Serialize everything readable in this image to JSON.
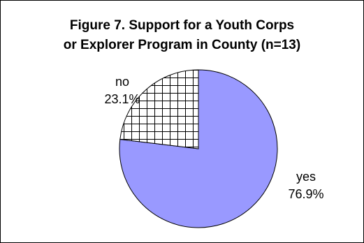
{
  "chart_data": {
    "type": "pie",
    "title": "Figure 7. Support for a Youth Corps or Explorer Program in County (n=13)",
    "title_lines": [
      "Figure 7. Support for a Youth Corps",
      "or Explorer Program in County (n=13)"
    ],
    "slices": [
      {
        "label": "yes",
        "value": 76.9,
        "value_label": "76.9%",
        "color": "#9999ff",
        "fill_pattern": "solid"
      },
      {
        "label": "no",
        "value": 23.1,
        "value_label": "23.1%",
        "color": "#ffffff",
        "fill_pattern": "crosshatch"
      }
    ],
    "start_angle_deg": 0,
    "direction": "clockwise",
    "legend": "none"
  }
}
